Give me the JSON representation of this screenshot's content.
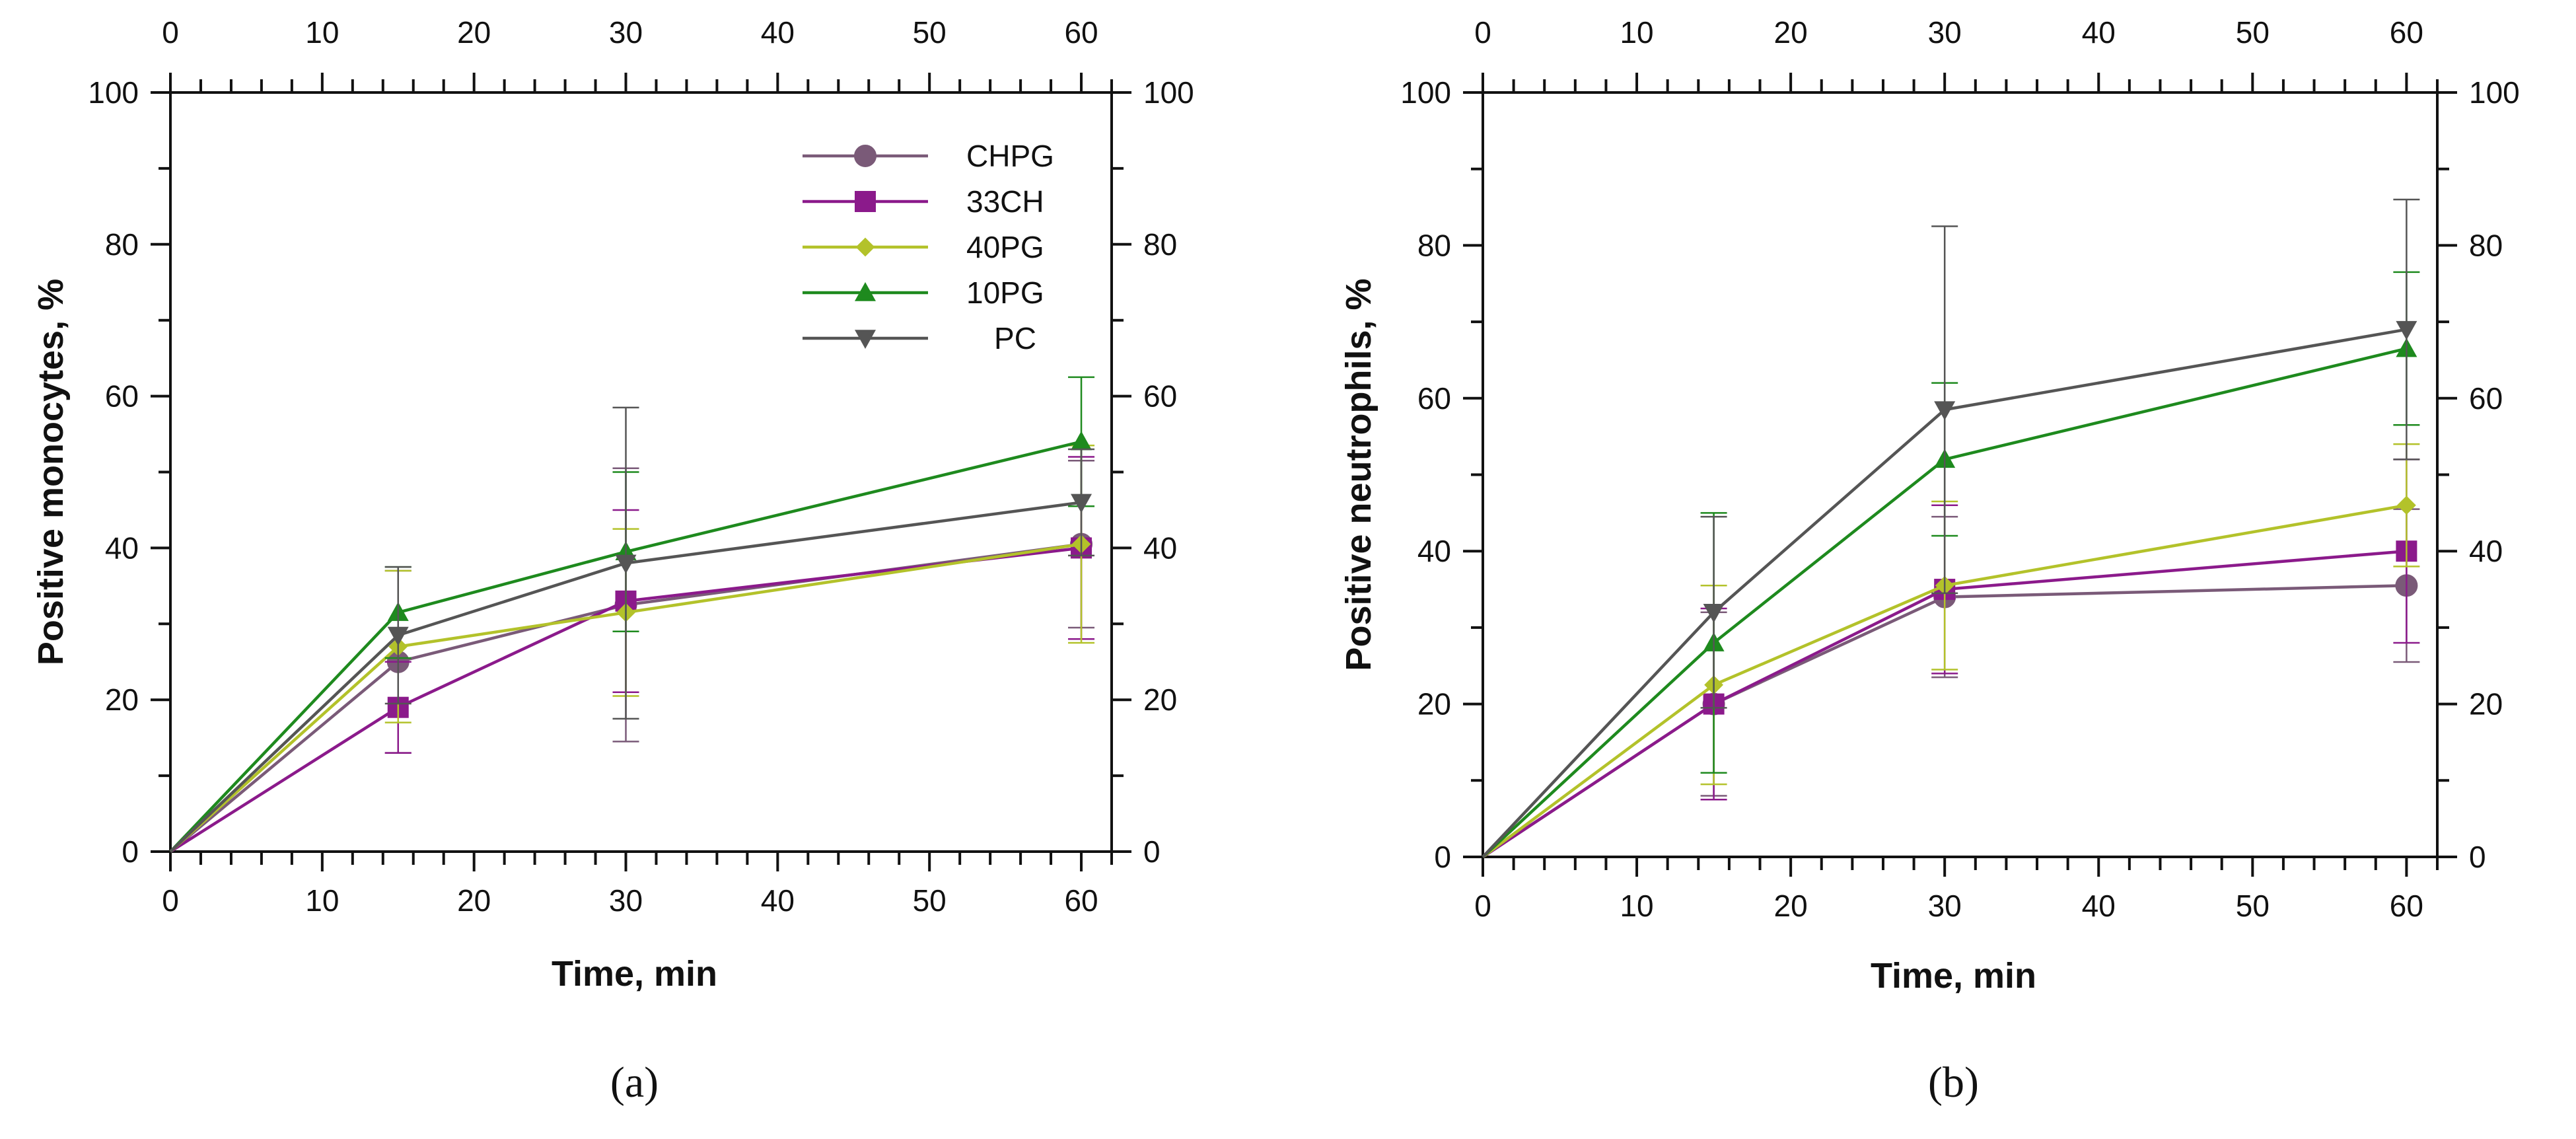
{
  "chart_data": [
    {
      "type": "line",
      "panel_label": "(a)",
      "xlabel": "Time, min",
      "ylabel": "Positive monocytes, %",
      "xlim": [
        0,
        62
      ],
      "ylim": [
        0,
        100
      ],
      "x_major_ticks": [
        0,
        10,
        20,
        30,
        40,
        50,
        60
      ],
      "y_major_ticks": [
        0,
        20,
        40,
        60,
        80,
        100
      ],
      "legend": "top-right",
      "x": [
        0,
        15,
        30,
        60
      ],
      "series": [
        {
          "name": "CHPG",
          "color": "#7a5a78",
          "marker": "circle",
          "values": [
            0,
            25,
            32.5,
            40.5
          ],
          "err": [
            0,
            12,
            18,
            11
          ]
        },
        {
          "name": "33CH",
          "color": "#8b1a8b",
          "marker": "square",
          "values": [
            0,
            19,
            33,
            40
          ],
          "err": [
            0,
            6,
            12,
            12
          ]
        },
        {
          "name": "40PG",
          "color": "#b3c22a",
          "marker": "diamond",
          "values": [
            0,
            27,
            31.5,
            40.5
          ],
          "err": [
            0,
            10,
            11,
            13
          ]
        },
        {
          "name": "10PG",
          "color": "#1e8a1e",
          "marker": "triangle-up",
          "values": [
            0,
            31.5,
            39.5,
            54
          ],
          "err": [
            0,
            6,
            10.5,
            8.5
          ]
        },
        {
          "name": "PC",
          "color": "#555555",
          "marker": "triangle-down",
          "values": [
            0,
            28.5,
            38,
            46
          ],
          "err": [
            0,
            9,
            20.5,
            7
          ]
        }
      ]
    },
    {
      "type": "line",
      "panel_label": "(b)",
      "xlabel": "Time, min",
      "ylabel": "Positive neutrophils, %",
      "xlim": [
        0,
        62
      ],
      "ylim": [
        0,
        100
      ],
      "x_major_ticks": [
        0,
        10,
        20,
        30,
        40,
        50,
        60
      ],
      "y_major_ticks": [
        0,
        20,
        40,
        60,
        80,
        100
      ],
      "x": [
        0,
        15,
        30,
        60
      ],
      "series": [
        {
          "name": "CHPG",
          "color": "#7a5a78",
          "marker": "circle",
          "values": [
            0,
            20,
            34,
            35.5
          ],
          "err": [
            0,
            12,
            10.5,
            10
          ]
        },
        {
          "name": "33CH",
          "color": "#8b1a8b",
          "marker": "square",
          "values": [
            0,
            20,
            35,
            40
          ],
          "err": [
            0,
            12.5,
            11,
            12
          ]
        },
        {
          "name": "40PG",
          "color": "#b3c22a",
          "marker": "diamond",
          "values": [
            0,
            22.5,
            35.5,
            46
          ],
          "err": [
            0,
            13,
            11,
            8
          ]
        },
        {
          "name": "10PG",
          "color": "#1e8a1e",
          "marker": "triangle-up",
          "values": [
            0,
            28,
            52,
            66.5
          ],
          "err": [
            0,
            17,
            10,
            10
          ]
        },
        {
          "name": "PC",
          "color": "#555555",
          "marker": "triangle-down",
          "values": [
            0,
            32,
            58.5,
            69
          ],
          "err": [
            0,
            12.5,
            24,
            17
          ]
        }
      ]
    }
  ]
}
